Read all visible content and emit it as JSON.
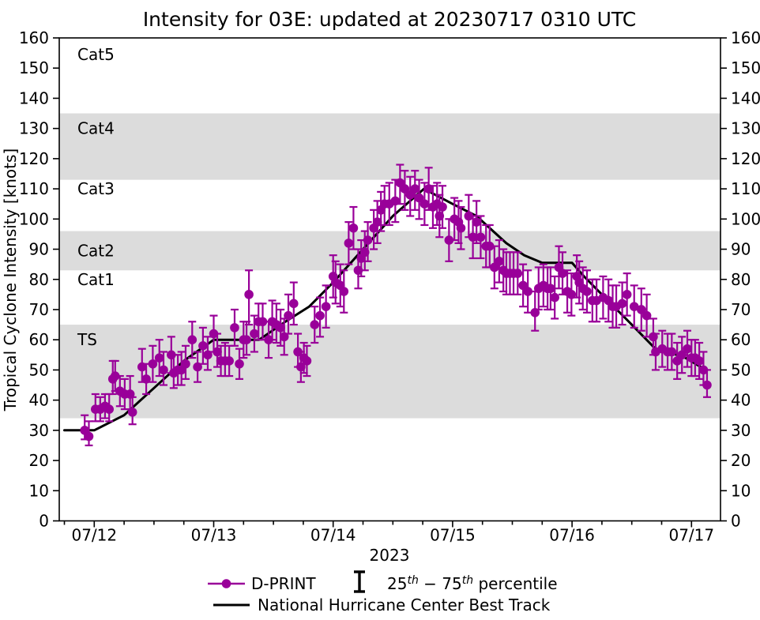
{
  "legend": {
    "dprint_label": "D-PRINT",
    "percentile_label_parts": {
      "p1": "25",
      "sup1": "th",
      "p2": " − 75",
      "sup2": "th",
      "p3": " percentile"
    },
    "best_track_label": "National Hurricane Center Best Track"
  },
  "colors": {
    "dprint": "#990099",
    "best_track": "#000000",
    "band": "#dcdcdc",
    "background": "#ffffff"
  },
  "chart_data": {
    "type": "scatter",
    "title": "Intensity for 03E: updated at 20230717 0310 UTC",
    "xlabel": "2023",
    "ylabel": "Tropical Cyclone Intensity [knots]",
    "x_unit": "days since 2023-07-12 00:00 UTC",
    "xlim": [
      -0.293,
      5.243
    ],
    "ylim": [
      0,
      160
    ],
    "y_ticks": [
      0,
      10,
      20,
      30,
      40,
      50,
      60,
      70,
      80,
      90,
      100,
      110,
      120,
      130,
      140,
      150,
      160
    ],
    "x_major_ticks": [
      {
        "t": 0,
        "label": "07/12"
      },
      {
        "t": 1,
        "label": "07/13"
      },
      {
        "t": 2,
        "label": "07/14"
      },
      {
        "t": 3,
        "label": "07/15"
      },
      {
        "t": 4,
        "label": "07/16"
      },
      {
        "t": 5,
        "label": "07/17"
      }
    ],
    "x_minor_step_days": 0.25,
    "grid": false,
    "legend_position": "below-axes",
    "shaded_bands_kt": [
      [
        34,
        65
      ],
      [
        83,
        96
      ],
      [
        113,
        135
      ]
    ],
    "category_labels": [
      {
        "text": "Cat5",
        "kt": 154.5
      },
      {
        "text": "Cat4",
        "kt": 130.0
      },
      {
        "text": "Cat3",
        "kt": 110.0
      },
      {
        "text": "Cat2",
        "kt": 89.5
      },
      {
        "text": "Cat1",
        "kt": 80.0
      },
      {
        "text": "TS",
        "kt": 60.0
      }
    ],
    "series": [
      {
        "name": "D-PRINT",
        "type": "scatter_with_errorbars",
        "color": "#990099",
        "point_format": [
          "t_days",
          "intensity_kt",
          "p25_kt",
          "p75_kt"
        ],
        "points": [
          [
            -0.08,
            30,
            27,
            35
          ],
          [
            -0.045,
            28,
            25,
            33
          ],
          [
            0.01,
            37,
            33,
            42
          ],
          [
            0.05,
            37,
            33,
            41
          ],
          [
            0.09,
            38,
            34,
            42
          ],
          [
            0.125,
            37,
            33,
            42
          ],
          [
            0.155,
            47,
            42,
            53
          ],
          [
            0.175,
            48,
            43,
            53
          ],
          [
            0.215,
            43,
            38,
            48
          ],
          [
            0.255,
            42,
            37,
            47
          ],
          [
            0.3,
            42,
            37,
            48
          ],
          [
            0.32,
            36,
            32,
            41
          ],
          [
            0.4,
            51,
            46,
            57
          ],
          [
            0.435,
            47,
            42,
            52
          ],
          [
            0.49,
            52,
            46,
            58
          ],
          [
            0.545,
            54,
            48,
            60
          ],
          [
            0.58,
            50,
            45,
            56
          ],
          [
            0.645,
            55,
            49,
            61
          ],
          [
            0.665,
            49,
            44,
            55
          ],
          [
            0.7,
            50,
            45,
            55
          ],
          [
            0.73,
            50,
            45,
            56
          ],
          [
            0.765,
            52,
            47,
            58
          ],
          [
            0.82,
            60,
            54,
            66
          ],
          [
            0.865,
            51,
            46,
            56
          ],
          [
            0.91,
            58,
            52,
            64
          ],
          [
            0.95,
            55,
            50,
            61
          ],
          [
            1.0,
            62,
            56,
            68
          ],
          [
            1.03,
            56,
            51,
            62
          ],
          [
            1.06,
            53,
            48,
            58
          ],
          [
            1.095,
            53,
            48,
            59
          ],
          [
            1.13,
            53,
            48,
            58
          ],
          [
            1.175,
            64,
            58,
            70
          ],
          [
            1.215,
            52,
            47,
            57
          ],
          [
            1.25,
            60,
            54,
            66
          ],
          [
            1.275,
            60,
            55,
            66
          ],
          [
            1.295,
            75,
            65,
            83
          ],
          [
            1.34,
            62,
            56,
            68
          ],
          [
            1.375,
            66,
            60,
            72
          ],
          [
            1.41,
            66,
            60,
            72
          ],
          [
            1.46,
            60,
            54,
            66
          ],
          [
            1.49,
            66,
            60,
            73
          ],
          [
            1.525,
            65,
            59,
            72
          ],
          [
            1.56,
            64,
            58,
            70
          ],
          [
            1.59,
            61,
            55,
            67
          ],
          [
            1.625,
            68,
            62,
            75
          ],
          [
            1.67,
            72,
            65,
            79
          ],
          [
            1.705,
            56,
            51,
            62
          ],
          [
            1.73,
            51,
            46,
            56
          ],
          [
            1.755,
            54,
            49,
            59
          ],
          [
            1.78,
            53,
            48,
            58
          ],
          [
            1.845,
            65,
            59,
            71
          ],
          [
            1.89,
            68,
            61,
            74
          ],
          [
            1.94,
            71,
            64,
            78
          ],
          [
            2.0,
            81,
            74,
            88
          ],
          [
            2.02,
            79,
            72,
            86
          ],
          [
            2.06,
            78,
            71,
            85
          ],
          [
            2.09,
            76,
            69,
            83
          ],
          [
            2.13,
            92,
            85,
            99
          ],
          [
            2.17,
            97,
            90,
            104
          ],
          [
            2.21,
            83,
            77,
            90
          ],
          [
            2.235,
            87,
            81,
            93
          ],
          [
            2.265,
            89,
            83,
            96
          ],
          [
            2.29,
            93,
            86,
            99
          ],
          [
            2.34,
            97,
            90,
            103
          ],
          [
            2.37,
            99,
            92,
            106
          ],
          [
            2.4,
            103,
            96,
            109
          ],
          [
            2.43,
            105,
            98,
            111
          ],
          [
            2.47,
            105,
            98,
            112
          ],
          [
            2.52,
            106,
            99,
            113
          ],
          [
            2.56,
            112,
            105,
            118
          ],
          [
            2.6,
            110,
            103,
            116
          ],
          [
            2.645,
            108,
            101,
            114
          ],
          [
            2.685,
            110,
            103,
            116
          ],
          [
            2.72,
            107,
            100,
            113
          ],
          [
            2.765,
            105,
            98,
            112
          ],
          [
            2.8,
            110,
            103,
            117
          ],
          [
            2.835,
            104,
            97,
            111
          ],
          [
            2.87,
            105,
            98,
            112
          ],
          [
            2.89,
            101,
            94,
            108
          ],
          [
            2.915,
            104,
            97,
            111
          ],
          [
            2.97,
            93,
            86,
            100
          ],
          [
            3.015,
            100,
            93,
            107
          ],
          [
            3.05,
            99,
            92,
            106
          ],
          [
            3.07,
            97,
            90,
            104
          ],
          [
            3.135,
            101,
            94,
            108
          ],
          [
            3.17,
            94,
            87,
            101
          ],
          [
            3.2,
            99,
            92,
            106
          ],
          [
            3.235,
            94,
            87,
            101
          ],
          [
            3.28,
            91,
            84,
            98
          ],
          [
            3.31,
            91,
            84,
            98
          ],
          [
            3.35,
            84,
            77,
            91
          ],
          [
            3.39,
            86,
            79,
            93
          ],
          [
            3.425,
            83,
            76,
            90
          ],
          [
            3.45,
            82,
            75,
            89
          ],
          [
            3.48,
            82,
            75,
            89
          ],
          [
            3.51,
            82,
            75,
            89
          ],
          [
            3.545,
            82,
            75,
            89
          ],
          [
            3.59,
            78,
            71,
            85
          ],
          [
            3.63,
            76,
            69,
            83
          ],
          [
            3.69,
            69,
            63,
            76
          ],
          [
            3.72,
            77,
            70,
            84
          ],
          [
            3.76,
            78,
            71,
            85
          ],
          [
            3.795,
            77,
            70,
            84
          ],
          [
            3.82,
            77,
            70,
            84
          ],
          [
            3.855,
            74,
            67,
            81
          ],
          [
            3.89,
            84,
            77,
            91
          ],
          [
            3.92,
            82,
            75,
            89
          ],
          [
            3.96,
            76,
            69,
            83
          ],
          [
            3.995,
            75,
            68,
            82
          ],
          [
            4.04,
            81,
            74,
            88
          ],
          [
            4.06,
            79,
            72,
            86
          ],
          [
            4.09,
            77,
            70,
            84
          ],
          [
            4.125,
            76,
            69,
            83
          ],
          [
            4.17,
            73,
            66,
            80
          ],
          [
            4.205,
            73,
            66,
            80
          ],
          [
            4.26,
            74,
            67,
            81
          ],
          [
            4.305,
            73,
            66,
            80
          ],
          [
            4.34,
            71,
            64,
            78
          ],
          [
            4.37,
            71,
            64,
            78
          ],
          [
            4.42,
            72,
            65,
            79
          ],
          [
            4.46,
            75,
            68,
            82
          ],
          [
            4.52,
            71,
            64,
            78
          ],
          [
            4.58,
            70,
            63,
            77
          ],
          [
            4.625,
            68,
            61,
            75
          ],
          [
            4.68,
            61,
            55,
            67
          ],
          [
            4.7,
            56,
            50,
            62
          ],
          [
            4.755,
            57,
            51,
            63
          ],
          [
            4.8,
            56,
            50,
            62
          ],
          [
            4.835,
            56,
            50,
            62
          ],
          [
            4.88,
            53,
            47,
            59
          ],
          [
            4.92,
            55,
            49,
            61
          ],
          [
            4.965,
            57,
            51,
            63
          ],
          [
            5.0,
            54,
            48,
            60
          ],
          [
            5.03,
            54,
            48,
            60
          ],
          [
            5.065,
            53,
            47,
            59
          ],
          [
            5.1,
            50,
            45,
            56
          ],
          [
            5.13,
            45,
            41,
            50
          ]
        ]
      },
      {
        "name": "National Hurricane Center Best Track",
        "type": "line",
        "color": "#000000",
        "point_format": [
          "t_days",
          "intensity_kt"
        ],
        "points": [
          [
            -0.25,
            30
          ],
          [
            0.0,
            30
          ],
          [
            0.25,
            35
          ],
          [
            0.5,
            44
          ],
          [
            0.75,
            53
          ],
          [
            1.0,
            60
          ],
          [
            1.38,
            60
          ],
          [
            1.6,
            66
          ],
          [
            1.8,
            71
          ],
          [
            2.0,
            79
          ],
          [
            2.25,
            90
          ],
          [
            2.5,
            101
          ],
          [
            2.76,
            110
          ],
          [
            3.0,
            105
          ],
          [
            3.2,
            101
          ],
          [
            3.45,
            92
          ],
          [
            3.6,
            88
          ],
          [
            3.75,
            85.5
          ],
          [
            4.0,
            85.5
          ],
          [
            4.1,
            81
          ],
          [
            4.25,
            75
          ],
          [
            4.5,
            65
          ],
          [
            4.71,
            56.5
          ],
          [
            4.8,
            56
          ],
          [
            4.95,
            54
          ],
          [
            5.12,
            50
          ]
        ]
      }
    ]
  }
}
